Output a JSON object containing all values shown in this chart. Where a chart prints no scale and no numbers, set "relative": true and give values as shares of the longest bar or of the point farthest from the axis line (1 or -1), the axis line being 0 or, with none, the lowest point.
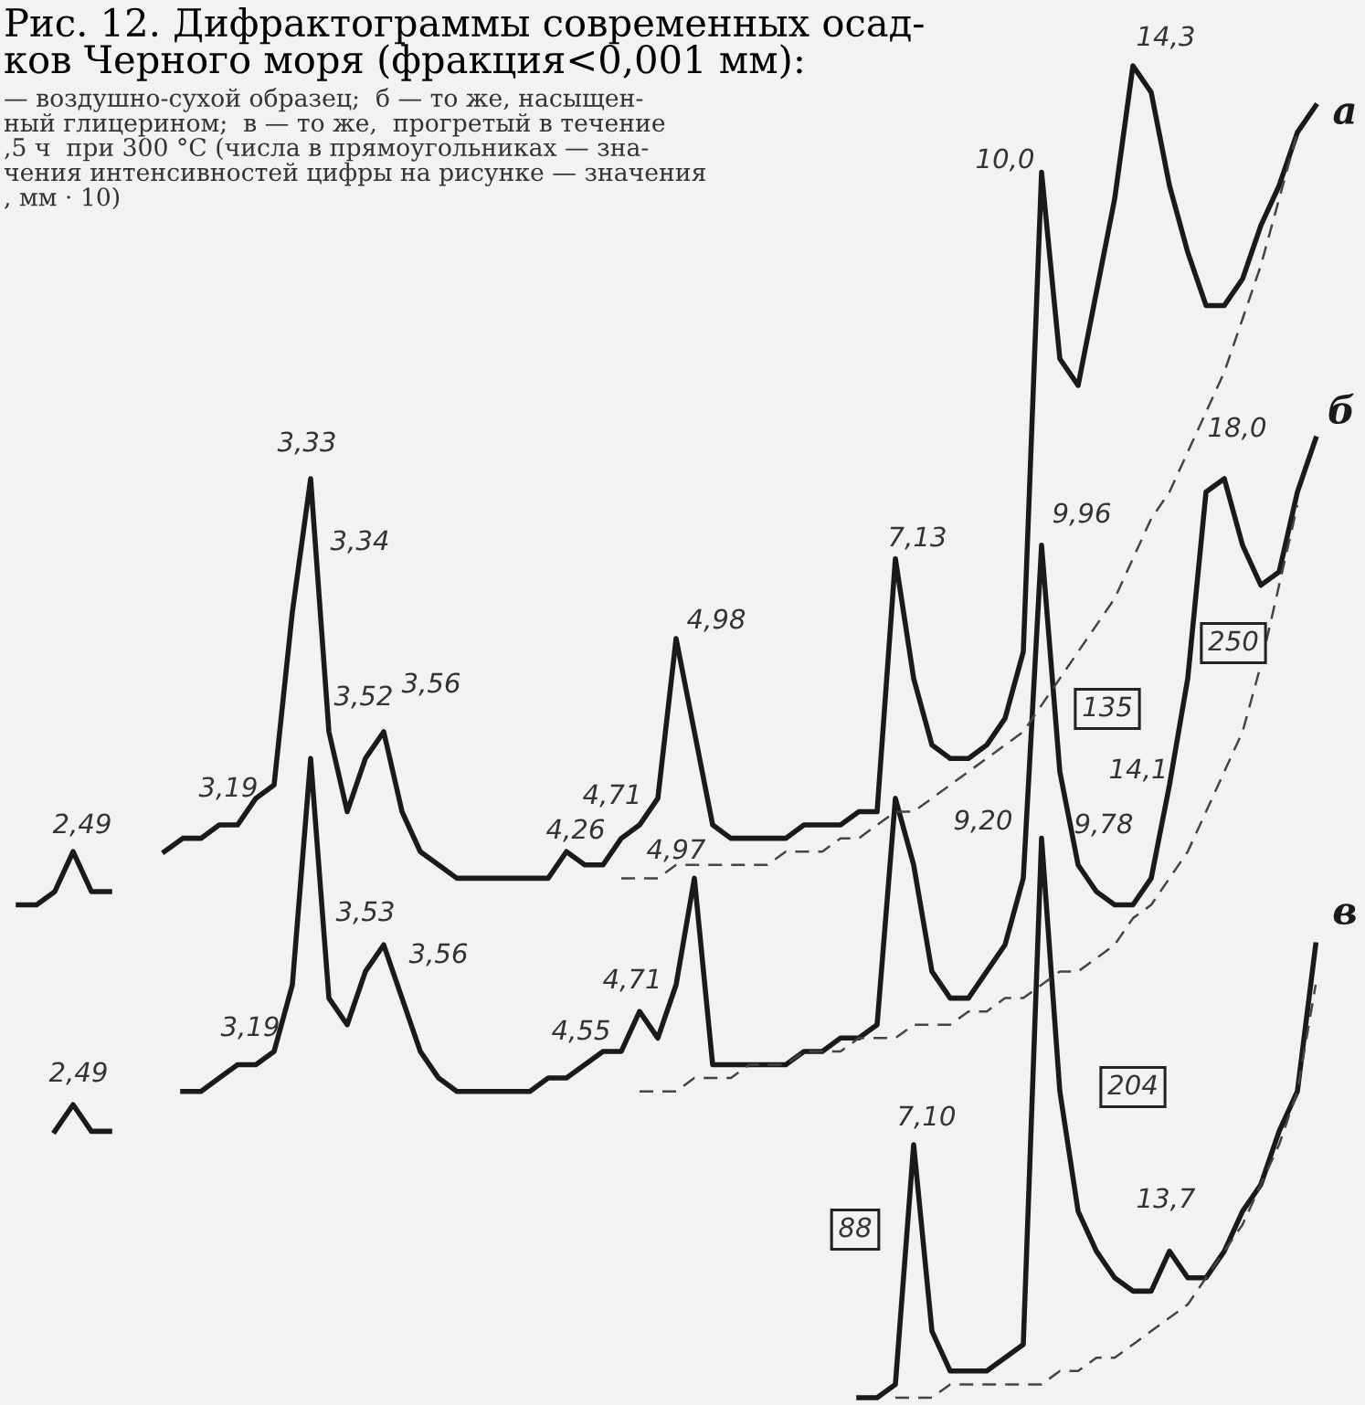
{
  "chart_data": {
    "type": "line",
    "relative": true,
    "title": "Рис. 12. Дифрактограммы современных осад-\nков Черного моря (фракция<0,001 мм):",
    "subtitle": "— воздушно-сухой образец;  б — то же, насыщен-\nный глицерином;  в — то же,  прогретый в течение\n,5 ч  при 300 °C (числа в прямоугольниках — зна-\nчения интенсивностей цифры на рисунке — значения\n, мм · 10)",
    "categories": [
      null,
      null,
      null,
      null,
      null,
      null,
      null,
      null,
      null,
      null,
      null,
      null,
      null,
      null,
      null,
      null,
      null,
      null,
      null,
      null,
      null,
      null,
      null,
      null,
      null,
      null,
      null,
      null,
      null,
      null,
      null,
      null,
      null,
      null,
      null,
      null,
      null,
      null,
      null,
      null,
      null,
      null,
      null,
      null,
      null,
      null,
      null,
      null,
      null,
      null,
      null,
      null,
      null,
      null,
      null,
      null,
      null,
      null,
      null,
      null,
      null,
      null,
      null,
      null,
      null,
      null,
      null,
      null,
      null,
      null,
      null,
      null,
      null
    ],
    "line_style": "solid",
    "series": [
      {
        "color": "#1a1a1a",
        "values": [
          0.37,
          0.37,
          0.38,
          0.41,
          0.38,
          0.38,
          null,
          null,
          null,
          null,
          null,
          null,
          null,
          null,
          null,
          null,
          null,
          null,
          null,
          null,
          null,
          null,
          null,
          null,
          null,
          null,
          null,
          null,
          null,
          null,
          null,
          null,
          null,
          null,
          null,
          null,
          null,
          null,
          null,
          null,
          null,
          null,
          null,
          null,
          null,
          null,
          null,
          null,
          null,
          null,
          null,
          null,
          null,
          null,
          null,
          null,
          null,
          null,
          null,
          null,
          null,
          null,
          null,
          null,
          null,
          null,
          null,
          null,
          null,
          null,
          null,
          null,
          null
        ]
      },
      {
        "color": "#1a1a1a",
        "values": [
          null,
          null,
          0.2,
          0.22,
          0.2,
          0.2,
          null,
          null,
          null,
          null,
          null,
          null,
          null,
          null,
          null,
          null,
          null,
          null,
          null,
          null,
          null,
          null,
          null,
          null,
          null,
          null,
          null,
          null,
          null,
          null,
          null,
          null,
          null,
          null,
          null,
          null,
          null,
          null,
          null,
          null,
          null,
          null,
          null,
          null,
          null,
          null,
          null,
          null,
          null,
          null,
          null,
          null,
          null,
          null,
          null,
          null,
          null,
          null,
          null,
          null,
          null,
          null,
          null,
          null,
          null,
          null,
          null,
          null,
          null,
          null,
          null,
          null,
          null
        ]
      },
      {
        "name": "а",
        "color": "#1a1a1a",
        "values": [
          null,
          null,
          null,
          null,
          null,
          null,
          null,
          null,
          0.41,
          0.42,
          0.42,
          0.43,
          0.43,
          0.45,
          0.46,
          0.59,
          0.69,
          0.5,
          0.44,
          0.48,
          0.5,
          0.44,
          0.41,
          0.4,
          0.39,
          0.39,
          0.39,
          0.39,
          0.39,
          0.39,
          0.41,
          0.4,
          0.4,
          0.42,
          0.43,
          0.45,
          0.57,
          0.5,
          0.43,
          0.42,
          0.42,
          0.42,
          0.42,
          0.43,
          0.43,
          0.43,
          0.44,
          0.44,
          0.63,
          0.54,
          0.49,
          0.48,
          0.48,
          0.49,
          0.51,
          0.56,
          0.92,
          0.78,
          0.76,
          0.83,
          0.9,
          1.0,
          0.98,
          0.91,
          0.86,
          0.82,
          0.82,
          0.84,
          0.88,
          0.91,
          0.95,
          0.97,
          null
        ]
      },
      {
        "name": "б",
        "color": "#1a1a1a",
        "values": [
          null,
          null,
          null,
          null,
          null,
          null,
          null,
          null,
          null,
          0.23,
          0.23,
          0.24,
          0.25,
          0.25,
          0.26,
          0.31,
          0.48,
          0.3,
          0.28,
          0.32,
          0.34,
          0.3,
          0.26,
          0.24,
          0.23,
          0.23,
          0.23,
          0.23,
          0.23,
          0.24,
          0.24,
          0.25,
          0.26,
          0.26,
          0.29,
          0.27,
          0.31,
          0.39,
          0.25,
          0.25,
          0.25,
          0.25,
          0.25,
          0.26,
          0.26,
          0.27,
          0.27,
          0.28,
          0.45,
          0.4,
          0.32,
          0.3,
          0.3,
          0.32,
          0.34,
          0.39,
          0.64,
          0.47,
          0.4,
          0.38,
          0.37,
          0.37,
          0.39,
          0.46,
          0.54,
          0.68,
          0.69,
          0.64,
          0.61,
          0.62,
          0.68,
          0.72,
          null
        ]
      },
      {
        "name": "в",
        "color": "#1a1a1a",
        "values": [
          null,
          null,
          null,
          null,
          null,
          null,
          null,
          null,
          null,
          null,
          null,
          null,
          null,
          null,
          null,
          null,
          null,
          null,
          null,
          null,
          null,
          null,
          null,
          null,
          null,
          null,
          null,
          null,
          null,
          null,
          null,
          null,
          null,
          null,
          null,
          null,
          null,
          null,
          null,
          null,
          null,
          null,
          null,
          null,
          null,
          null,
          0.0,
          0.0,
          0.01,
          0.19,
          0.05,
          0.02,
          0.02,
          0.02,
          0.03,
          0.04,
          0.42,
          0.23,
          0.14,
          0.11,
          0.09,
          0.08,
          0.08,
          0.11,
          0.09,
          0.09,
          0.11,
          0.14,
          0.16,
          0.2,
          0.23,
          0.34,
          null
        ]
      },
      {
        "color": "#444444",
        "line_style": "dashed",
        "values": [
          null,
          null,
          null,
          null,
          null,
          null,
          null,
          null,
          null,
          null,
          null,
          null,
          null,
          null,
          null,
          null,
          null,
          null,
          null,
          null,
          null,
          null,
          null,
          null,
          null,
          null,
          null,
          null,
          null,
          null,
          null,
          null,
          null,
          0.39,
          0.39,
          0.39,
          0.4,
          0.4,
          0.4,
          0.4,
          0.4,
          0.4,
          0.41,
          0.41,
          0.41,
          0.42,
          0.42,
          0.43,
          0.44,
          0.44,
          0.45,
          0.46,
          0.47,
          0.48,
          0.49,
          0.5,
          0.52,
          0.54,
          0.56,
          0.58,
          0.6,
          0.63,
          0.66,
          0.68,
          0.71,
          0.74,
          0.77,
          0.81,
          0.85,
          0.9,
          0.95,
          null,
          null
        ]
      },
      {
        "color": "#444444",
        "line_style": "dashed",
        "values": [
          null,
          null,
          null,
          null,
          null,
          null,
          null,
          null,
          null,
          null,
          null,
          null,
          null,
          null,
          null,
          null,
          null,
          null,
          null,
          null,
          null,
          null,
          null,
          null,
          null,
          null,
          null,
          null,
          null,
          null,
          null,
          null,
          null,
          null,
          0.23,
          0.23,
          0.23,
          0.24,
          0.24,
          0.24,
          0.25,
          0.25,
          0.25,
          0.26,
          0.26,
          0.26,
          0.27,
          0.27,
          0.27,
          0.28,
          0.28,
          0.28,
          0.29,
          0.29,
          0.3,
          0.3,
          0.31,
          0.32,
          0.32,
          0.33,
          0.34,
          0.36,
          0.37,
          0.39,
          0.41,
          0.44,
          0.47,
          0.5,
          0.55,
          0.61,
          0.67,
          null,
          null
        ]
      },
      {
        "color": "#444444",
        "line_style": "dashed",
        "values": [
          null,
          null,
          null,
          null,
          null,
          null,
          null,
          null,
          null,
          null,
          null,
          null,
          null,
          null,
          null,
          null,
          null,
          null,
          null,
          null,
          null,
          null,
          null,
          null,
          null,
          null,
          null,
          null,
          null,
          null,
          null,
          null,
          null,
          null,
          null,
          null,
          null,
          null,
          null,
          null,
          null,
          null,
          null,
          null,
          null,
          null,
          null,
          null,
          0.0,
          0.0,
          0.0,
          0.01,
          0.01,
          0.01,
          0.01,
          0.01,
          0.01,
          0.02,
          0.02,
          0.03,
          0.03,
          0.04,
          0.05,
          0.06,
          0.07,
          0.09,
          0.11,
          0.13,
          0.16,
          0.19,
          0.23,
          0.31,
          null
        ]
      }
    ],
    "annotations": [
      "2,49",
      "3,19",
      "3,33",
      "3,34",
      "3,52",
      "3,56",
      "4,26",
      "4,71",
      "4,98",
      "7,13",
      "10,0",
      "14,3",
      "2,49",
      "3,19",
      "3,53",
      "3,56",
      "4,55",
      "4,71",
      "4,97",
      "9,20",
      "9,96",
      "9,78",
      "14,1",
      "18,0",
      "7,10",
      "13,7",
      "135",
      "250",
      "204",
      "88"
    ]
  }
}
